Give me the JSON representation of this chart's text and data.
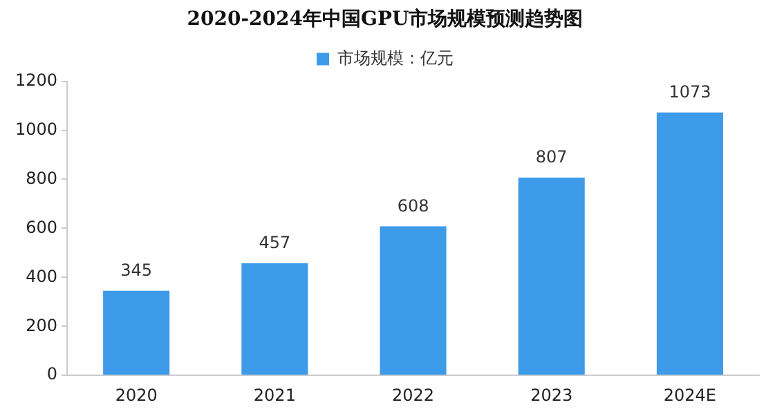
{
  "chart_data": {
    "type": "bar",
    "title": "2020-2024年中国GPU市场规模预测趋势图",
    "categories": [
      "2020",
      "2021",
      "2022",
      "2023",
      "2024E"
    ],
    "series": [
      {
        "name": "市场规模：亿元",
        "color": "#3d9bea",
        "values": [
          345,
          457,
          608,
          807,
          1073
        ]
      }
    ],
    "ylim": [
      0,
      1200
    ],
    "yticks": [
      0,
      200,
      400,
      600,
      800,
      1000,
      1200
    ],
    "grid": false,
    "legend": "top",
    "data_labels": true
  }
}
